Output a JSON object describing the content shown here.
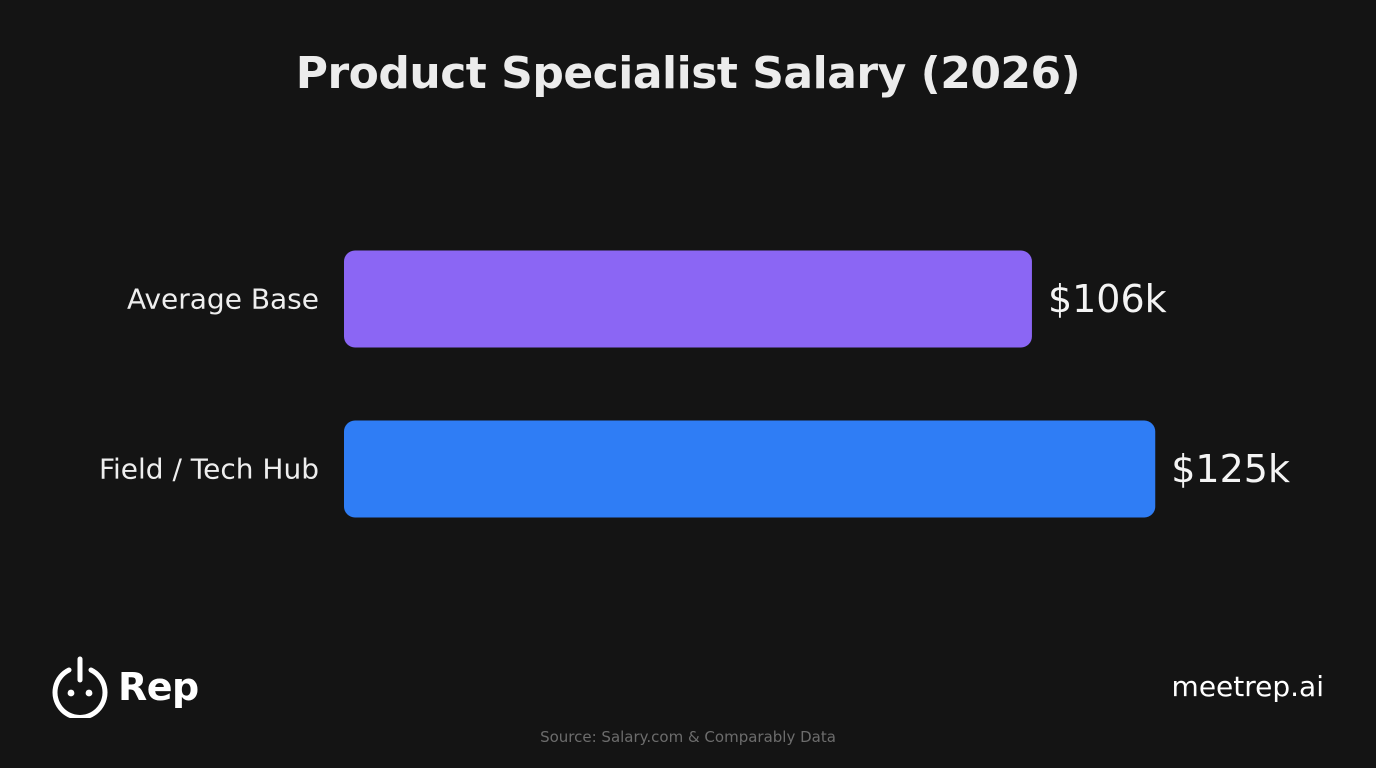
{
  "chart_data": {
    "type": "bar",
    "orientation": "horizontal",
    "title": "Product Specialist Salary (2026)",
    "categories": [
      "Average Base",
      "Field / Tech Hub"
    ],
    "values": [
      106,
      125
    ],
    "value_labels": [
      "$106k",
      "$125k"
    ],
    "unit": "$k",
    "colors": [
      "#8b66f4",
      "#2f7df5"
    ],
    "grid": false,
    "legend": "none",
    "xlim": [
      0,
      150
    ]
  },
  "branding": {
    "logo_text": "Rep",
    "logo_icon": "power-face-icon",
    "site": "meetrep.ai"
  },
  "source": "Source: Salary.com & Comparably Data",
  "colors": {
    "background": "#141414",
    "text": "#f2f2f2",
    "source_text": "#6c6c6c"
  }
}
